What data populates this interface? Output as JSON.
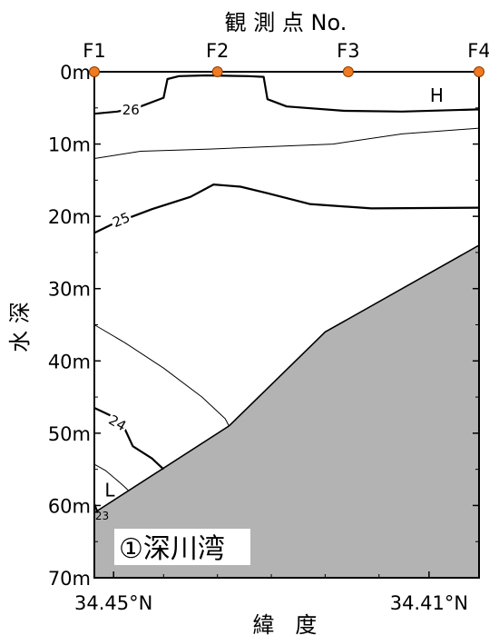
{
  "chart_data": {
    "type": "line",
    "title": "観 測 点 No.",
    "xlabel": "緯   度",
    "ylabel": "水 深",
    "region_label": "①深川湾",
    "stations": [
      {
        "name": "F1",
        "pos": 0.0
      },
      {
        "name": "F2",
        "pos": 0.32
      },
      {
        "name": "F3",
        "pos": 0.66
      },
      {
        "name": "F4",
        "pos": 1.0
      }
    ],
    "x_ticks": [
      {
        "label": "34.45°N",
        "pos": 0.05
      },
      {
        "label": "34.41°N",
        "pos": 0.87
      }
    ],
    "y_ticks": [
      "0m",
      "10m",
      "20m",
      "30m",
      "40m",
      "50m",
      "60m",
      "70m"
    ],
    "ylim": [
      0,
      70
    ],
    "y_inverted": true,
    "seabed": [
      [
        0,
        61
      ],
      [
        0.35,
        49
      ],
      [
        0.6,
        36
      ],
      [
        1.0,
        24
      ]
    ],
    "contours": [
      {
        "label": "26",
        "weight": "bold",
        "points": [
          [
            0,
            5.8
          ],
          [
            0.06,
            5.5
          ],
          [
            0.12,
            4.8
          ],
          [
            0.18,
            3.6
          ],
          [
            0.19,
            1.0
          ],
          [
            0.22,
            0.6
          ],
          [
            0.29,
            0.5
          ],
          [
            0.4,
            0.6
          ],
          [
            0.44,
            0.7
          ],
          [
            0.45,
            3.8
          ],
          [
            0.5,
            4.8
          ],
          [
            0.65,
            5.4
          ],
          [
            0.8,
            5.5
          ],
          [
            1.0,
            5.2
          ]
        ]
      },
      {
        "label": "",
        "weight": "thin",
        "points": [
          [
            0,
            12.0
          ],
          [
            0.12,
            11.0
          ],
          [
            0.3,
            10.7
          ],
          [
            0.62,
            10.0
          ],
          [
            0.8,
            8.6
          ],
          [
            1.0,
            7.8
          ]
        ]
      },
      {
        "label": "25",
        "weight": "bold",
        "points": [
          [
            0,
            22.3
          ],
          [
            0.05,
            21.0
          ],
          [
            0.15,
            19.0
          ],
          [
            0.25,
            17.3
          ],
          [
            0.31,
            15.6
          ],
          [
            0.38,
            15.9
          ],
          [
            0.45,
            16.8
          ],
          [
            0.56,
            18.3
          ],
          [
            0.72,
            18.9
          ],
          [
            1.0,
            18.8
          ]
        ]
      },
      {
        "label": "",
        "weight": "thin",
        "points": [
          [
            0,
            35.0
          ],
          [
            0.08,
            37.5
          ],
          [
            0.18,
            41.0
          ],
          [
            0.28,
            45.0
          ],
          [
            0.34,
            48.0
          ],
          [
            0.35,
            49.0
          ]
        ]
      },
      {
        "label": "24",
        "weight": "bold",
        "points": [
          [
            0,
            46.5
          ],
          [
            0.04,
            47.5
          ],
          [
            0.08,
            49.5
          ],
          [
            0.1,
            51.8
          ],
          [
            0.15,
            53.5
          ],
          [
            0.18,
            55.0
          ]
        ]
      },
      {
        "label": "",
        "weight": "thin",
        "points": [
          [
            0,
            54.3
          ],
          [
            0.03,
            55.2
          ],
          [
            0.07,
            57.0
          ],
          [
            0.09,
            58.0
          ]
        ]
      },
      {
        "label": "23",
        "weight": "bold",
        "points": [
          [
            0,
            59.8
          ],
          [
            0.005,
            60.5
          ],
          [
            0.01,
            61.0
          ]
        ]
      }
    ],
    "marks": [
      {
        "label": "H",
        "pos": 0.89,
        "depth": 2.4
      },
      {
        "label": "L",
        "pos": 0.04,
        "depth": 57.0
      }
    ],
    "colors": {
      "seabed": "#b3b3b3",
      "station_marker": "#f07a22",
      "line": "#000000"
    }
  }
}
